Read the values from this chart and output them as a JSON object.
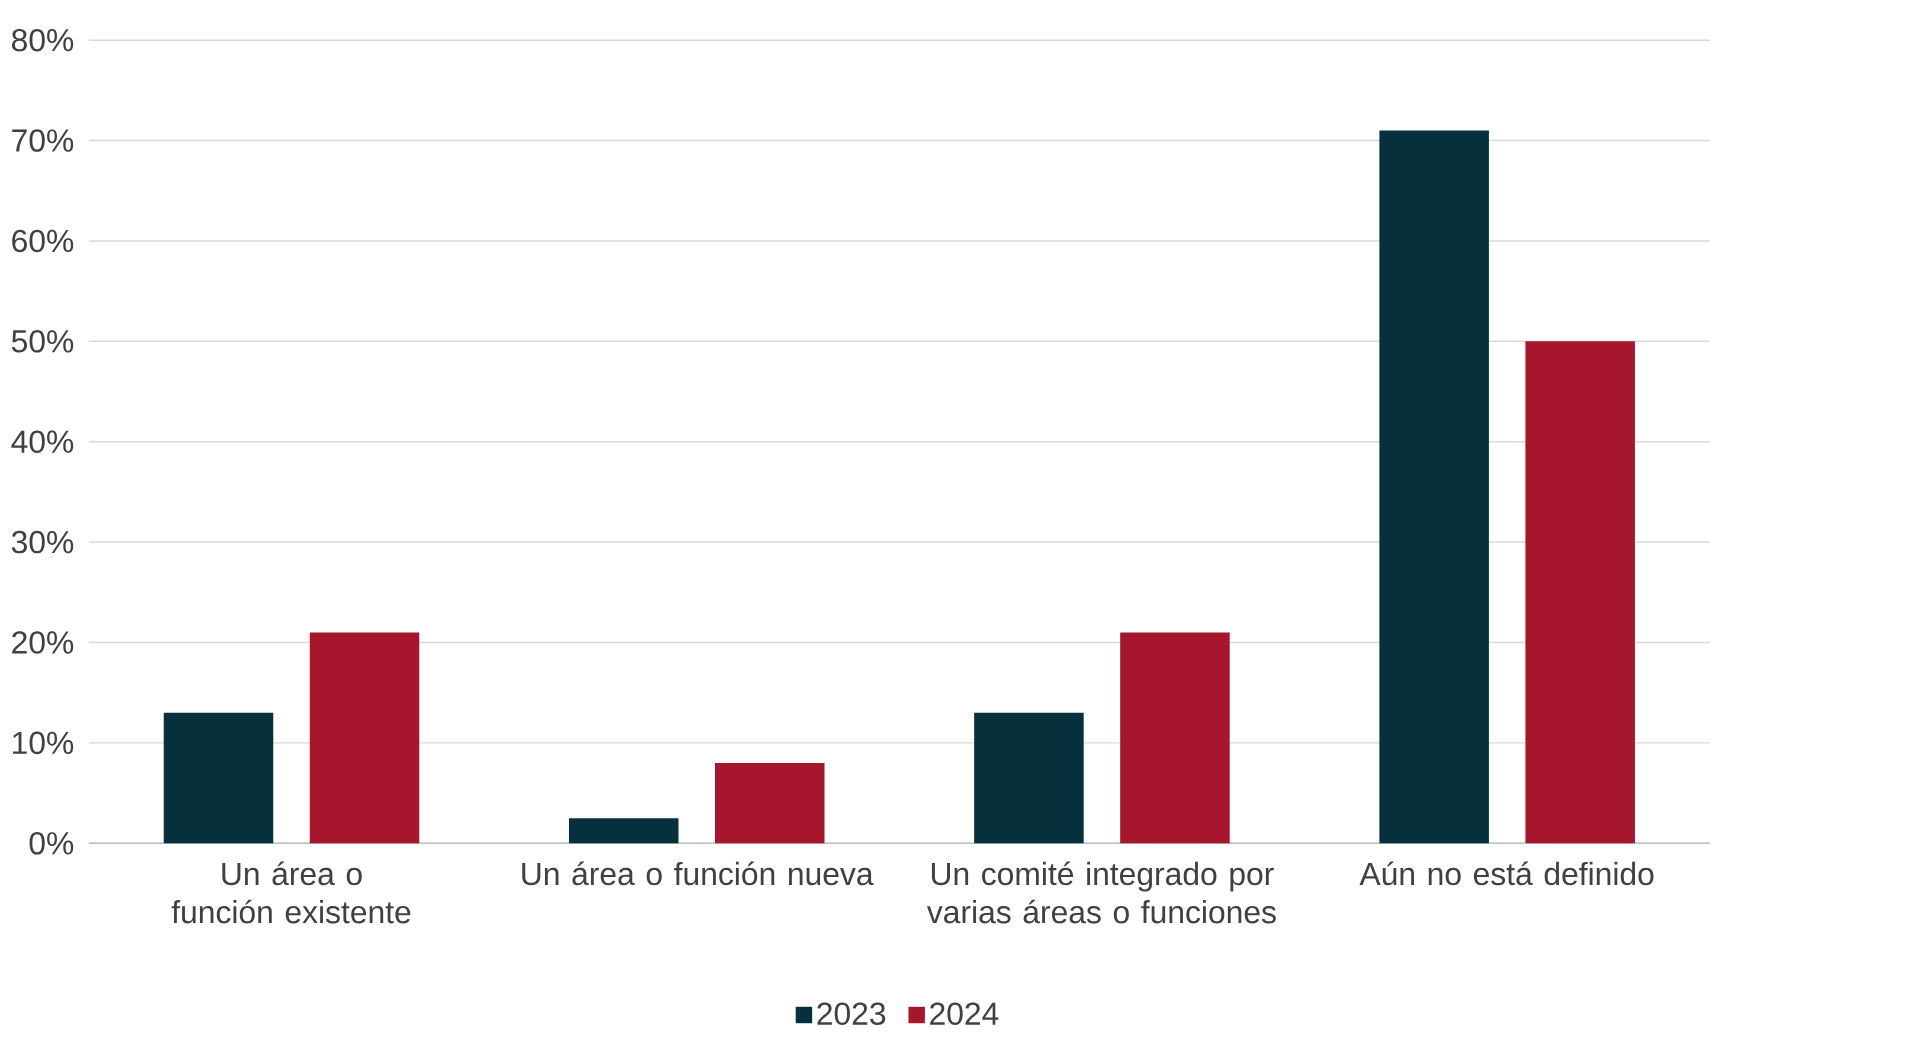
{
  "chart_data": {
    "type": "bar",
    "categories": [
      "Un área o función existente",
      "Un área o función nueva",
      "Un comité integrado por varias áreas o funciones",
      "Aún no está definido"
    ],
    "series": [
      {
        "name": "2023",
        "color": "#06303c",
        "values": [
          13,
          2.5,
          13,
          71
        ]
      },
      {
        "name": "2024",
        "color": "#a6172d",
        "values": [
          21,
          8,
          21,
          50
        ]
      }
    ],
    "ylim": [
      0,
      80
    ],
    "yticks": [
      {
        "value": 0,
        "label": "0%"
      },
      {
        "value": 10,
        "label": "10%"
      },
      {
        "value": 20,
        "label": "20%"
      },
      {
        "value": 30,
        "label": "30%"
      },
      {
        "value": 40,
        "label": "40%"
      },
      {
        "value": 50,
        "label": "50%"
      },
      {
        "value": 60,
        "label": "60%"
      },
      {
        "value": 70,
        "label": "70%"
      },
      {
        "value": 80,
        "label": "80%"
      }
    ],
    "grid": "y",
    "legend": "bottom"
  }
}
